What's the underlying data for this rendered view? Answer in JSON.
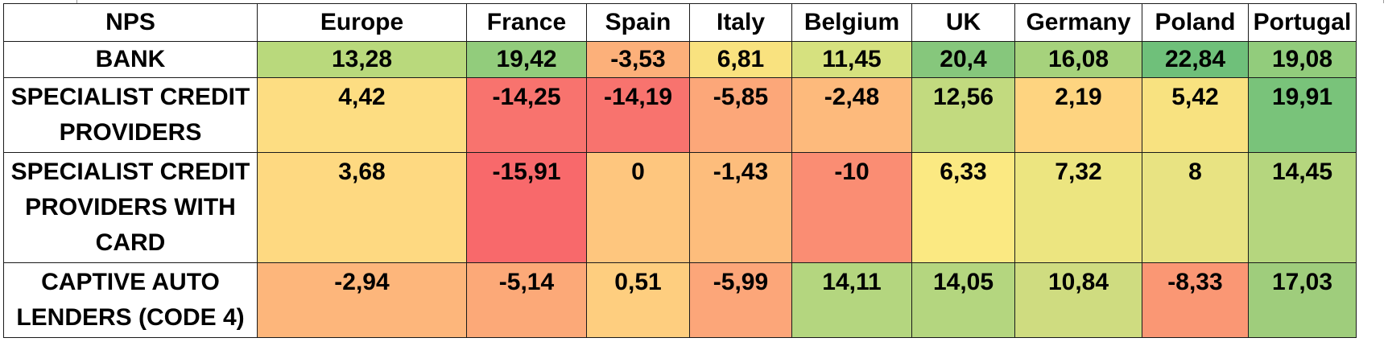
{
  "chart_data": {
    "type": "heatmap",
    "title": "",
    "corner_label": "NPS",
    "columns": [
      "Europe",
      "France",
      "Spain",
      "Italy",
      "Belgium",
      "UK",
      "Germany",
      "Poland",
      "Portugal"
    ],
    "rows": [
      {
        "label": "BANK",
        "values": [
          "13,28",
          "19,42",
          "-3,53",
          "6,81",
          "11,45",
          "20,4",
          "16,08",
          "22,84",
          "19,08"
        ],
        "colors": [
          "#b9d97c",
          "#92cc7c",
          "#fcb07a",
          "#f9e27f",
          "#d6e17f",
          "#86c77c",
          "#a6d27c",
          "#6fc07a",
          "#92cc7c"
        ]
      },
      {
        "label": "SPECIALIST CREDIT PROVIDERS",
        "values": [
          "4,42",
          "-14,25",
          "-14,19",
          "-5,85",
          "-2,48",
          "12,56",
          "2,19",
          "5,42",
          "19,91"
        ],
        "colors": [
          "#fddd82",
          "#f8736e",
          "#f8736e",
          "#fca779",
          "#fdba7c",
          "#c2da7f",
          "#fed480",
          "#f8e280",
          "#79c37a"
        ]
      },
      {
        "label": "SPECIALIST CREDIT PROVIDERS WITH CARD",
        "values": [
          "3,68",
          "-15,91",
          "0",
          "-1,43",
          "-10",
          "6,33",
          "7,32",
          "8",
          "14,45"
        ],
        "colors": [
          "#fed981",
          "#f8696b",
          "#fec67e",
          "#fdbd7c",
          "#fa8d73",
          "#fbe982",
          "#ece580",
          "#e8e382",
          "#b5d67e"
        ]
      },
      {
        "label": "CAPTIVE AUTO LENDERS (CODE 4)",
        "values": [
          "-2,94",
          "-5,14",
          "0,51",
          "-5,99",
          "14,11",
          "14,05",
          "10,84",
          "-8,33",
          "17,03"
        ],
        "colors": [
          "#fdb67b",
          "#fca978",
          "#fece7f",
          "#fca679",
          "#b4d67f",
          "#b4d67f",
          "#cfdc80",
          "#fa9774",
          "#9fcd7c"
        ]
      }
    ]
  }
}
